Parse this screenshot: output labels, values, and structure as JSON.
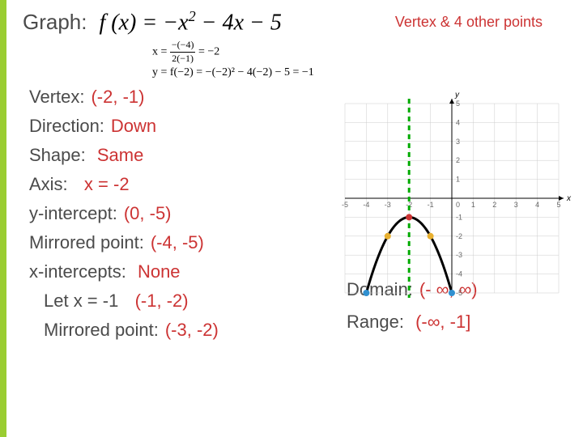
{
  "header": {
    "graph_label": "Graph:",
    "formula_html": "f (x) = −x<sup>2</sup> − 4x − 5",
    "vertex_points": "Vertex & 4 other points"
  },
  "work": {
    "line1_lhs": "x =",
    "line1_num": "−(−4)",
    "line1_den": "2(−1)",
    "line1_rhs": "= −2",
    "line2": "y = f(−2) = −(−2)² − 4(−2) − 5 = −1"
  },
  "props": {
    "vertex_label": "Vertex:",
    "vertex_value": "(-2, -1)",
    "direction_label": "Direction:",
    "direction_value": "Down",
    "shape_label": "Shape:",
    "shape_value": "Same",
    "axis_label": "Axis:",
    "axis_value": "x = -2",
    "yint_label": "y-intercept:",
    "yint_value": "(0, -5)",
    "mirror_label": "Mirrored point:",
    "mirror_value": "(-4, -5)",
    "xint_label": "x-intercepts:",
    "xint_value": "None",
    "letx_label": "Let x = -1",
    "letx_value": "(-1, -2)",
    "mirror2_label": "Mirrored point:",
    "mirror2_value": "(-3, -2)",
    "domain_label": "Domain:",
    "domain_value": "(- ∞, ∞)",
    "range_label": "Range:",
    "range_value": "(-∞, -1]"
  },
  "chart": {
    "xlim": [
      -5,
      5
    ],
    "ylim": [
      -5,
      5
    ],
    "xtick_step": 1,
    "ytick_step": 1,
    "axis_color": "#000000",
    "grid_color": "#cccccc",
    "background_color": "#ffffff",
    "axis_of_symmetry": {
      "x": -2,
      "color": "#00aa00",
      "width": 3,
      "dash": "6,5"
    },
    "parabola": {
      "a": -1,
      "b": -4,
      "c": -5,
      "x_from": -4.0,
      "x_to": 0.0,
      "color": "#000000",
      "width": 3
    },
    "points": [
      {
        "x": -2,
        "y": -1,
        "color": "#cc3333",
        "r": 4
      },
      {
        "x": -1,
        "y": -2,
        "color": "#e8b030",
        "r": 4
      },
      {
        "x": -3,
        "y": -2,
        "color": "#e8b030",
        "r": 4
      },
      {
        "x": 0,
        "y": -5,
        "color": "#3090d0",
        "r": 4
      },
      {
        "x": -4,
        "y": -5,
        "color": "#3090d0",
        "r": 4
      }
    ],
    "tick_fontsize": 9,
    "tick_color": "#666666"
  }
}
